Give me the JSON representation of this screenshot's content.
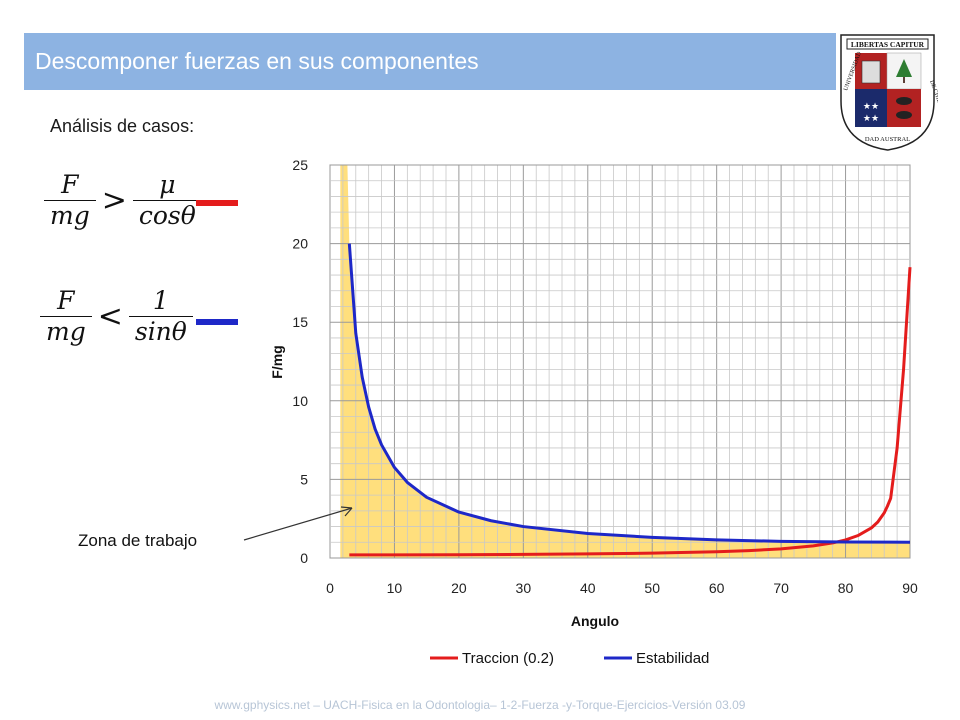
{
  "slide": {
    "title": "Descomponer fuerzas en sus componentes",
    "subtitle": "Análisis de casos:",
    "annotation": "Zona de trabajo",
    "footer": "www.gphysics.net – UACH-Fisica en la Odontologia– 1-2-Fuerza -y-Torque-Ejercicios-Versión 03.09",
    "title_bar_color": "#8db3e2"
  },
  "logo": {
    "top_text": "LIBERTAS CAPITUR",
    "left_text": "UNIVERSIDAD",
    "bottom_text": "DAD AUSTRAL",
    "right_text": "DE CHILE"
  },
  "formulas": [
    {
      "num": "F",
      "den": "mg",
      "relation": ">",
      "rhs_num": "μ",
      "rhs_den": "cosθ",
      "color": "#e41c1c"
    },
    {
      "num": "F",
      "den": "mg",
      "relation": "<",
      "rhs_num": "1",
      "rhs_den": "sinθ",
      "color": "#1e28c8"
    }
  ],
  "chart_data": {
    "type": "line",
    "xlabel": "Angulo",
    "ylabel": "F/mg",
    "xlim": [
      0,
      90
    ],
    "ylim": [
      0,
      25
    ],
    "x_ticks": [
      0,
      10,
      20,
      30,
      40,
      50,
      60,
      70,
      80,
      90
    ],
    "y_ticks": [
      0,
      5,
      10,
      15,
      20,
      25
    ],
    "grid": true,
    "legend_position": "bottom",
    "shaded_region": {
      "label": "Zona de trabajo",
      "color": "#ffd966"
    },
    "series": [
      {
        "name": "Traccion (0.2)",
        "color": "#e41c1c",
        "x": [
          3,
          10,
          20,
          30,
          40,
          50,
          60,
          65,
          70,
          75,
          78,
          80,
          82,
          84,
          85,
          86,
          86.5,
          87,
          88,
          89,
          90
        ],
        "y": [
          0.2,
          0.2,
          0.21,
          0.23,
          0.26,
          0.31,
          0.4,
          0.47,
          0.58,
          0.77,
          0.96,
          1.15,
          1.44,
          1.91,
          2.29,
          2.87,
          3.3,
          3.8,
          7,
          12,
          18.5
        ]
      },
      {
        "name": "Estabilidad",
        "color": "#1e28c8",
        "x": [
          3,
          4,
          5,
          6,
          7,
          8,
          10,
          12,
          15,
          20,
          25,
          30,
          40,
          50,
          60,
          70,
          80,
          90
        ],
        "y": [
          20,
          14.3,
          11.5,
          9.6,
          8.2,
          7.2,
          5.76,
          4.81,
          3.86,
          2.92,
          2.37,
          2.0,
          1.56,
          1.31,
          1.15,
          1.06,
          1.02,
          1.0
        ]
      }
    ]
  }
}
